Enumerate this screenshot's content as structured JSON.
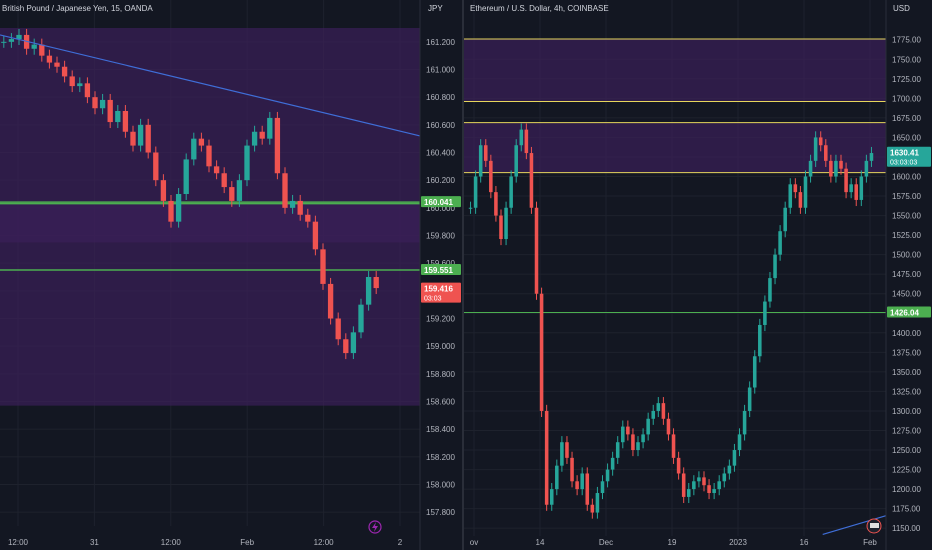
{
  "colors": {
    "background": "#131722",
    "up": "#26a69a",
    "down": "#ef5350",
    "zone": "#3a1f59",
    "hline": "#4caf50",
    "yline": "#e6d65c",
    "trend": "#3f6ed8",
    "text": "#b2b5be"
  },
  "chart_data": [
    {
      "type": "candlestick",
      "title": "British Pound / Japanese Yen, 15, OANDA",
      "currency": "JPY",
      "ylim": [
        157.7,
        161.3
      ],
      "y_ticks": [
        "161.200",
        "161.000",
        "160.800",
        "160.600",
        "160.400",
        "160.200",
        "160.000",
        "159.800",
        "159.600",
        "159.400",
        "159.200",
        "159.000",
        "158.800",
        "158.600",
        "158.400",
        "158.200",
        "158.000",
        "157.800"
      ],
      "x_ticks": [
        "12:00",
        "31",
        "12:00",
        "Feb",
        "12:00",
        "2"
      ],
      "series": [
        {
          "values": [
            161.2,
            161.22,
            161.25,
            161.15,
            161.18,
            161.1,
            161.05,
            161.02,
            160.95,
            160.88,
            160.9,
            160.8,
            160.72,
            160.78,
            160.62,
            160.7,
            160.55,
            160.45,
            160.6,
            160.4,
            160.2,
            160.05,
            159.9,
            160.1,
            160.35,
            160.5,
            160.45,
            160.3,
            160.25,
            160.15,
            160.05,
            160.2,
            160.45,
            160.55,
            160.5,
            160.65,
            160.25,
            160.0,
            160.05,
            159.95,
            159.9,
            159.7,
            159.45,
            159.2,
            159.05,
            158.95,
            159.1,
            159.3,
            159.5,
            159.42
          ]
        }
      ],
      "price_labels": [
        {
          "text": "160.041",
          "value": 160.041,
          "color": "#4caf50"
        },
        {
          "text": "159.551",
          "value": 159.551,
          "color": "#4caf50"
        },
        {
          "text": "159.416",
          "value": 159.416,
          "color": "#ef5350",
          "countdown": "03:03"
        }
      ],
      "zones": [
        [
          158.57,
          161.3
        ],
        [
          159.75,
          160.03
        ]
      ],
      "hlines": [
        160.041,
        160.03,
        159.551
      ],
      "trendline": [
        [
          161.25,
          0
        ],
        [
          160.52,
          1
        ]
      ]
    },
    {
      "type": "candlestick",
      "title": "Ethereum / U.S. Dollar, 4h, COINBASE",
      "currency": "USD",
      "ylim": [
        1140,
        1790
      ],
      "y_ticks": [
        "1775.00",
        "1750.00",
        "1725.00",
        "1700.00",
        "1675.00",
        "1650.00",
        "1625.00",
        "1600.00",
        "1575.00",
        "1550.00",
        "1525.00",
        "1500.00",
        "1475.00",
        "1450.00",
        "1425.00",
        "1400.00",
        "1375.00",
        "1350.00",
        "1325.00",
        "1300.00",
        "1275.00",
        "1250.00",
        "1225.00",
        "1200.00",
        "1175.00",
        "1150.00"
      ],
      "x_ticks": [
        "ov",
        "14",
        "Dec",
        "19",
        "2023",
        "16",
        "Feb"
      ],
      "series": [
        {
          "values": [
            1560,
            1600,
            1640,
            1620,
            1580,
            1550,
            1520,
            1560,
            1600,
            1640,
            1660,
            1630,
            1560,
            1450,
            1300,
            1180,
            1200,
            1230,
            1260,
            1240,
            1210,
            1200,
            1220,
            1180,
            1170,
            1195,
            1210,
            1225,
            1240,
            1260,
            1280,
            1270,
            1250,
            1260,
            1270,
            1290,
            1300,
            1310,
            1290,
            1270,
            1240,
            1220,
            1190,
            1200,
            1210,
            1215,
            1205,
            1195,
            1200,
            1210,
            1220,
            1230,
            1250,
            1270,
            1300,
            1330,
            1370,
            1410,
            1440,
            1470,
            1500,
            1530,
            1560,
            1590,
            1580,
            1560,
            1600,
            1620,
            1650,
            1640,
            1620,
            1600,
            1620,
            1610,
            1580,
            1590,
            1570,
            1600,
            1620,
            1630
          ]
        }
      ],
      "price_labels": [
        {
          "text": "1630.41",
          "value": 1630.41,
          "color": "#26a69a",
          "countdown": "03:03:03"
        },
        {
          "text": "1426.04",
          "value": 1426.04,
          "color": "#4caf50"
        }
      ],
      "zones": [
        [
          1696,
          1776
        ],
        [
          1605,
          1669
        ]
      ],
      "hlines_yellow": [
        1776,
        1696,
        1669,
        1605
      ],
      "hlines_green": [
        1426.04
      ],
      "trendline": [
        [
          1142,
          0.85
        ],
        [
          1166,
          1
        ]
      ]
    }
  ]
}
